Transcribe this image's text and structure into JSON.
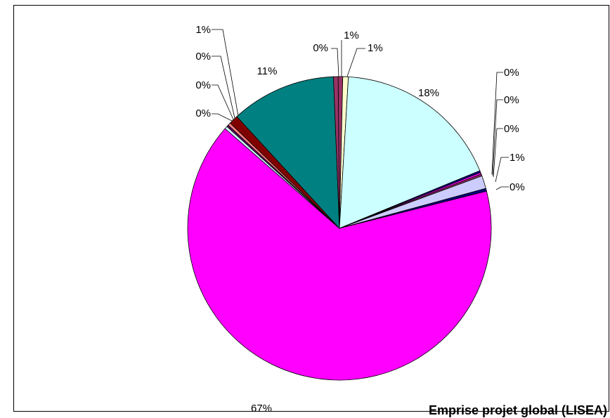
{
  "chart_data": {
    "type": "pie",
    "title": "Emprise projet global (LISEA)",
    "slices": [
      {
        "value": 0.5,
        "label": "0%",
        "color": "#993366"
      },
      {
        "value": 0.6,
        "label": "1%",
        "color": "#FFFFCC"
      },
      {
        "value": 18.2,
        "label": "18%",
        "color": "#CCFFFF"
      },
      {
        "value": 0.2,
        "label": "0%",
        "color": "#000080"
      },
      {
        "value": 0.2,
        "label": "0%",
        "color": "#FF00FF"
      },
      {
        "value": 0.2,
        "label": "0%",
        "color": "#993366"
      },
      {
        "value": 1.4,
        "label": "1%",
        "color": "#CCCCFF"
      },
      {
        "value": 0.3,
        "label": "0%",
        "color": "#000080"
      },
      {
        "value": 66.6,
        "label": "67%",
        "color": "#FF00FF"
      },
      {
        "value": 0.3,
        "label": "0%",
        "color": "#CCFFFF"
      },
      {
        "value": 0.2,
        "label": "0%",
        "color": "#660066"
      },
      {
        "value": 0.3,
        "label": "0%",
        "color": "#FF8080"
      },
      {
        "value": 1.0,
        "label": "1%",
        "color": "#800000"
      },
      {
        "value": 11.4,
        "label": "11%",
        "color": "#008080"
      },
      {
        "value": 0.5,
        "label": "1%",
        "color": "#993366"
      }
    ],
    "legend": "none"
  }
}
